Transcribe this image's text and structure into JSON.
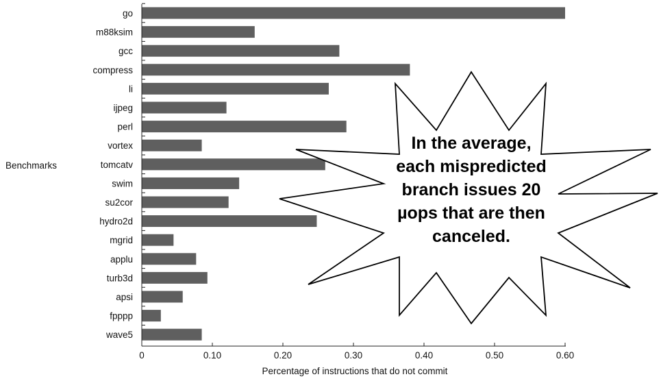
{
  "chart_data": {
    "type": "bar",
    "orientation": "horizontal",
    "categories": [
      "go",
      "m88ksim",
      "gcc",
      "compress",
      "li",
      "ijpeg",
      "perl",
      "vortex",
      "tomcatv",
      "swim",
      "su2cor",
      "hydro2d",
      "mgrid",
      "applu",
      "turb3d",
      "apsi",
      "fpppp",
      "wave5"
    ],
    "values": [
      0.6,
      0.16,
      0.28,
      0.38,
      0.265,
      0.12,
      0.29,
      0.085,
      0.26,
      0.138,
      0.123,
      0.248,
      0.045,
      0.077,
      0.093,
      0.058,
      0.027,
      0.085
    ],
    "xlim": [
      0,
      0.6
    ],
    "xticks": [
      "0",
      "0.10",
      "0.20",
      "0.30",
      "0.40",
      "0.50",
      "0.60"
    ],
    "xlabel": "Percentage of instructions that do not commit",
    "ylabel": "Benchmarks",
    "bar_color": "#5f5f5f",
    "annotation": {
      "lines": [
        "In the average,",
        "each mispredicted",
        "branch issues 20",
        "µops that are then",
        "canceled."
      ]
    }
  }
}
